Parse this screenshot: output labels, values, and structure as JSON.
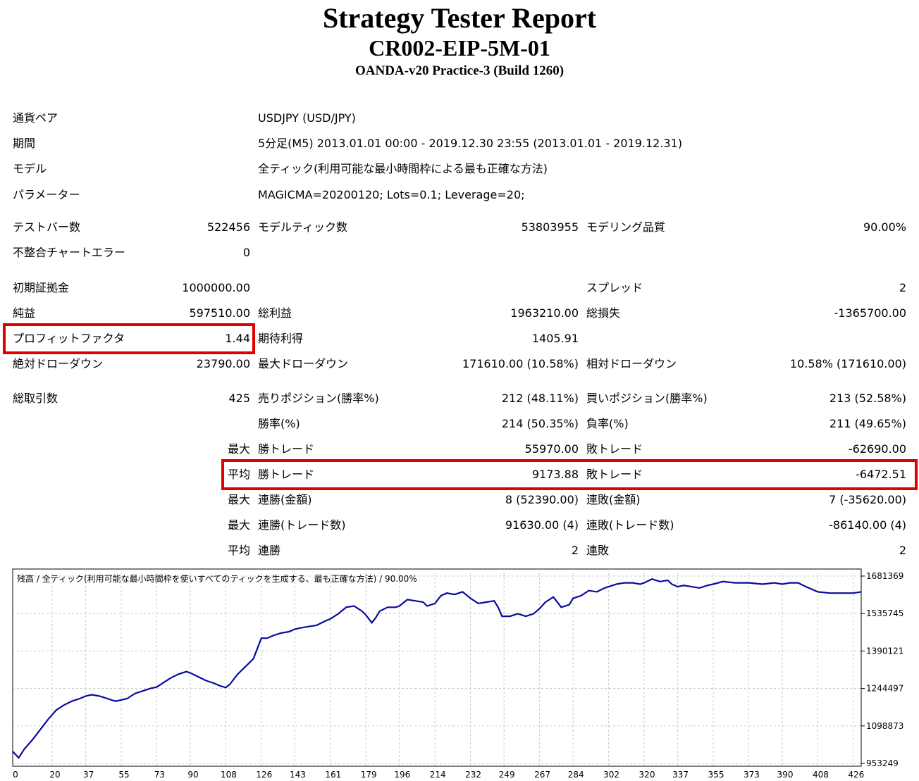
{
  "header": {
    "title": "Strategy Tester Report",
    "subtitle": "CR002-EIP-5M-01",
    "server": "OANDA-v20 Practice-3 (Build 1260)"
  },
  "settings": {
    "symbol_label": "通貨ペア",
    "symbol_value": "USDJPY (USD/JPY)",
    "period_label": "期間",
    "period_value": "5分足(M5) 2013.01.01 00:00 - 2019.12.30 23:55 (2013.01.01 - 2019.12.31)",
    "model_label": "モデル",
    "model_value": "全ティック(利用可能な最小時間枠による最も正確な方法)",
    "params_label": "パラメーター",
    "params_value": "MAGICMA=20200120; Lots=0.1; Leverage=20;"
  },
  "test": {
    "bars_label": "テストバー数",
    "bars_value": "522456",
    "ticks_label": "モデルティック数",
    "ticks_value": "53803955",
    "quality_label": "モデリング品質",
    "quality_value": "90.00%",
    "mismatch_label": "不整合チャートエラー",
    "mismatch_value": "0"
  },
  "results": {
    "deposit_label": "初期証拠金",
    "deposit_value": "1000000.00",
    "spread_label": "スプレッド",
    "spread_value": "2",
    "net_label": "純益",
    "net_value": "597510.00",
    "gross_profit_label": "総利益",
    "gross_profit_value": "1963210.00",
    "gross_loss_label": "総損失",
    "gross_loss_value": "-1365700.00",
    "pf_label": "プロフィットファクタ",
    "pf_value": "1.44",
    "expected_label": "期待利得",
    "expected_value": "1405.91",
    "abs_dd_label": "絶対ドローダウン",
    "abs_dd_value": "23790.00",
    "max_dd_label": "最大ドローダウン",
    "max_dd_value": "171610.00 (10.58%)",
    "rel_dd_label": "相対ドローダウン",
    "rel_dd_value": "10.58% (171610.00)"
  },
  "trades": {
    "total_label": "総取引数",
    "total_value": "425",
    "short_label": "売りポジション(勝率%)",
    "short_value": "212 (48.11%)",
    "long_label": "買いポジション(勝率%)",
    "long_value": "213 (52.58%)",
    "win_rate_label": "勝率(%)",
    "win_rate_value": "214 (50.35%)",
    "loss_rate_label": "負率(%)",
    "loss_rate_value": "211 (49.65%)",
    "max_prefix": "最大",
    "avg_prefix": "平均",
    "largest_win_label": "勝トレード",
    "largest_win_value": "55970.00",
    "largest_loss_label": "敗トレード",
    "largest_loss_value": "-62690.00",
    "avg_win_label": "勝トレード",
    "avg_win_value": "9173.88",
    "avg_loss_label": "敗トレード",
    "avg_loss_value": "-6472.51",
    "max_cons_wins_label": "連勝(金額)",
    "max_cons_wins_value": "8 (52390.00)",
    "max_cons_losses_label": "連敗(金額)",
    "max_cons_losses_value": "7 (-35620.00)",
    "max_cons_profit_label": "連勝(トレード数)",
    "max_cons_profit_value": "91630.00 (4)",
    "max_cons_loss_label": "連敗(トレード数)",
    "max_cons_loss_value": "-86140.00 (4)",
    "avg_cons_wins_label": "連勝",
    "avg_cons_wins_value": "2",
    "avg_cons_losses_label": "連敗",
    "avg_cons_losses_value": "2"
  },
  "colors": {
    "line": "#0a0a9e",
    "grid": "#c8c8c8",
    "highlight": "#e00000"
  },
  "chart_data": {
    "type": "line",
    "title": "残高 / 全ティック(利用可能な最小時間枠を使いすべてのティックを生成する、最も正確な方法) / 90.00%",
    "xlabel": "",
    "ylabel": "",
    "x_ticks": [
      "0",
      "20",
      "37",
      "55",
      "73",
      "90",
      "108",
      "126",
      "143",
      "161",
      "179",
      "196",
      "214",
      "232",
      "249",
      "267",
      "284",
      "302",
      "320",
      "337",
      "355",
      "373",
      "390",
      "408",
      "426"
    ],
    "y_ticks": [
      "1681369",
      "1535745",
      "1390121",
      "1244497",
      "1098873",
      "953249"
    ],
    "xlim": [
      0,
      430
    ],
    "ylim": [
      953249,
      1681369
    ],
    "grid": true,
    "series": [
      {
        "x": [
          0,
          3,
          6,
          10,
          14,
          18,
          22,
          26,
          30,
          34,
          37,
          40,
          44,
          48,
          52,
          55,
          58,
          62,
          66,
          70,
          73,
          76,
          80,
          84,
          88,
          90,
          94,
          98,
          102,
          105,
          108,
          110,
          114,
          118,
          122,
          124,
          126,
          129,
          132,
          136,
          140,
          143,
          146,
          150,
          154,
          158,
          161,
          165,
          169,
          173,
          177,
          179,
          182,
          184,
          186,
          190,
          194,
          196,
          200,
          204,
          208,
          210,
          214,
          217,
          220,
          224,
          228,
          232,
          236,
          240,
          244,
          246,
          248,
          252,
          256,
          260,
          264,
          267,
          270,
          274,
          278,
          282,
          284,
          288,
          292,
          296,
          300,
          302,
          306,
          310,
          314,
          318,
          320,
          324,
          328,
          332,
          334,
          337,
          340,
          344,
          348,
          352,
          355,
          360,
          366,
          373,
          380,
          386,
          390,
          394,
          398,
          402,
          408,
          414,
          420,
          426,
          430
        ],
        "y": [
          1000000,
          975000,
          1010000,
          1045000,
          1085000,
          1125000,
          1160000,
          1180000,
          1195000,
          1205000,
          1215000,
          1220000,
          1215000,
          1205000,
          1195000,
          1200000,
          1205000,
          1225000,
          1235000,
          1245000,
          1250000,
          1265000,
          1285000,
          1300000,
          1310000,
          1305000,
          1290000,
          1275000,
          1265000,
          1255000,
          1248000,
          1260000,
          1300000,
          1330000,
          1360000,
          1400000,
          1440000,
          1440000,
          1450000,
          1460000,
          1465000,
          1475000,
          1480000,
          1485000,
          1490000,
          1505000,
          1515000,
          1535000,
          1560000,
          1565000,
          1545000,
          1530000,
          1500000,
          1520000,
          1545000,
          1560000,
          1560000,
          1565000,
          1590000,
          1585000,
          1580000,
          1565000,
          1575000,
          1605000,
          1615000,
          1610000,
          1620000,
          1595000,
          1575000,
          1580000,
          1585000,
          1560000,
          1525000,
          1525000,
          1535000,
          1525000,
          1535000,
          1555000,
          1580000,
          1600000,
          1560000,
          1570000,
          1595000,
          1605000,
          1625000,
          1620000,
          1635000,
          1640000,
          1650000,
          1655000,
          1655000,
          1650000,
          1655000,
          1670000,
          1660000,
          1665000,
          1650000,
          1640000,
          1645000,
          1640000,
          1635000,
          1645000,
          1650000,
          1660000,
          1655000,
          1655000,
          1650000,
          1655000,
          1650000,
          1655000,
          1655000,
          1640000,
          1620000,
          1615000,
          1615000,
          1615000,
          1620000
        ]
      }
    ]
  }
}
